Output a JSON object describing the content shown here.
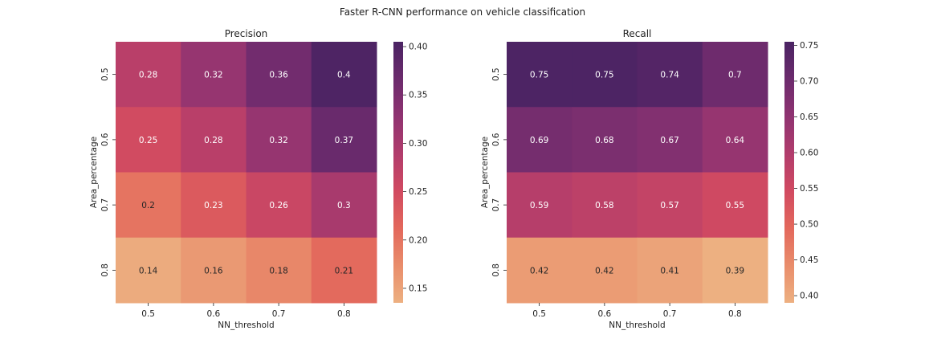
{
  "figure": {
    "title": "Faster R-CNN performance on vehicle classification"
  },
  "chart_data": [
    {
      "type": "heatmap",
      "title": "Precision",
      "xlabel": "NN_threshold",
      "ylabel": "Area_percentage",
      "x_categories": [
        "0.5",
        "0.6",
        "0.7",
        "0.8"
      ],
      "y_categories": [
        "0.5",
        "0.6",
        "0.7",
        "0.8"
      ],
      "values": [
        [
          0.28,
          0.32,
          0.36,
          0.4
        ],
        [
          0.25,
          0.28,
          0.32,
          0.37
        ],
        [
          0.2,
          0.23,
          0.26,
          0.3
        ],
        [
          0.14,
          0.16,
          0.18,
          0.21
        ]
      ],
      "colorbar": {
        "range": [
          0.135,
          0.405
        ],
        "ticks": [
          0.15,
          0.2,
          0.25,
          0.3,
          0.35,
          0.4
        ],
        "tick_labels": [
          "0.15",
          "0.20",
          "0.25",
          "0.30",
          "0.35",
          "0.40"
        ]
      },
      "annotations": true,
      "colormap": "flare"
    },
    {
      "type": "heatmap",
      "title": "Recall",
      "xlabel": "NN_threshold",
      "ylabel": "Area_percentage",
      "x_categories": [
        "0.5",
        "0.6",
        "0.7",
        "0.8"
      ],
      "y_categories": [
        "0.5",
        "0.6",
        "0.7",
        "0.8"
      ],
      "values": [
        [
          0.75,
          0.75,
          0.74,
          0.7
        ],
        [
          0.69,
          0.68,
          0.67,
          0.64
        ],
        [
          0.59,
          0.58,
          0.57,
          0.55
        ],
        [
          0.42,
          0.42,
          0.41,
          0.39
        ]
      ],
      "colorbar": {
        "range": [
          0.39,
          0.755
        ],
        "ticks": [
          0.4,
          0.45,
          0.5,
          0.55,
          0.6,
          0.65,
          0.7,
          0.75
        ],
        "tick_labels": [
          "0.40",
          "0.45",
          "0.50",
          "0.55",
          "0.60",
          "0.65",
          "0.70",
          "0.75"
        ]
      },
      "annotations": true,
      "colormap": "flare"
    }
  ],
  "colors": {
    "colormap_stops": [
      "#edb081",
      "#e98d6b",
      "#e3685c",
      "#d14a61",
      "#b13c6c",
      "#8f3371",
      "#6c2b6d",
      "#4a2363"
    ],
    "annotation_light": "#ffffff",
    "annotation_dark": "#262626"
  }
}
